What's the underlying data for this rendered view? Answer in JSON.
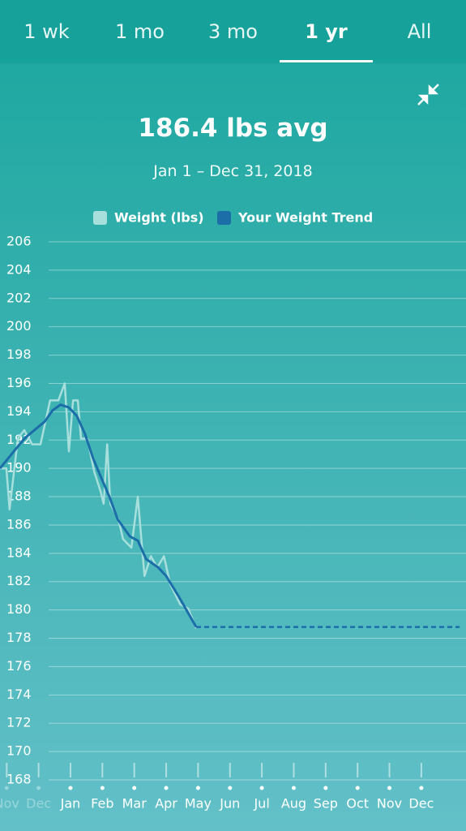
{
  "tabs": {
    "items": [
      "1 wk",
      "1 mo",
      "3 mo",
      "1 yr",
      "All"
    ],
    "selected": 3
  },
  "summary": {
    "average": "186.4 lbs avg",
    "date_range": "Jan 1 – Dec 31, 2018"
  },
  "chart_data": {
    "type": "line",
    "xlim": [
      -2.21,
      12.4
    ],
    "ylim": [
      168,
      206
    ],
    "yticks": [
      168,
      170,
      172,
      174,
      176,
      178,
      180,
      182,
      184,
      186,
      188,
      190,
      192,
      194,
      196,
      198,
      200,
      202,
      204,
      206
    ],
    "xticks": [
      {
        "value": -2,
        "label": "Nov"
      },
      {
        "value": -1,
        "label": "Dec"
      },
      {
        "value": 0,
        "label": "Jan"
      },
      {
        "value": 1,
        "label": "Feb"
      },
      {
        "value": 2,
        "label": "Mar"
      },
      {
        "value": 3,
        "label": "Apr"
      },
      {
        "value": 4,
        "label": "May"
      },
      {
        "value": 5,
        "label": "Jun"
      },
      {
        "value": 6,
        "label": "Jul"
      },
      {
        "value": 7,
        "label": "Aug"
      },
      {
        "value": 8,
        "label": "Sep"
      },
      {
        "value": 9,
        "label": "Oct"
      },
      {
        "value": 10,
        "label": "Nov"
      },
      {
        "value": 11,
        "label": "Dec"
      }
    ],
    "grid": true,
    "series": [
      {
        "name": "Weight (lbs)",
        "color": "#a6dfdc",
        "x": [
          -2.21,
          -2.01,
          -1.91,
          -1.65,
          -1.45,
          -1.2,
          -0.94,
          -0.64,
          -0.38,
          -0.18,
          -0.05,
          0.08,
          0.23,
          0.33,
          0.53,
          0.74,
          0.94,
          1.04,
          1.15,
          1.25,
          1.5,
          1.65,
          1.91,
          2.11,
          2.32,
          2.52,
          2.72,
          2.93,
          3.13,
          3.44,
          3.69,
          3.94
        ],
        "values": [
          190.0,
          190.0,
          187.1,
          192.1,
          192.7,
          191.7,
          191.7,
          194.8,
          194.8,
          196.0,
          191.2,
          194.8,
          194.8,
          192.1,
          192.1,
          189.8,
          188.4,
          187.5,
          191.7,
          187.5,
          186.4,
          185.0,
          184.4,
          188.0,
          182.4,
          183.8,
          183.0,
          183.8,
          181.8,
          180.4,
          180.1,
          178.7
        ]
      },
      {
        "name": "Your Weight Trend",
        "color": "#1b6ea8",
        "x": [
          -2.21,
          -1.45,
          -0.81,
          -0.56,
          -0.31,
          -0.05,
          0.2,
          0.46,
          0.71,
          0.97,
          1.22,
          1.48,
          1.86,
          2.11,
          2.37,
          2.75,
          3.0,
          3.38,
          3.94
        ],
        "values": [
          190.0,
          192.1,
          193.3,
          194.1,
          194.5,
          194.3,
          193.7,
          192.4,
          190.7,
          189.3,
          188.0,
          186.4,
          185.2,
          184.9,
          183.6,
          183.0,
          182.4,
          181.0,
          178.8
        ]
      }
    ],
    "projection": {
      "color": "#1b6ea8",
      "x": [
        3.94,
        12.2
      ],
      "values": [
        178.8,
        178.8
      ]
    }
  }
}
